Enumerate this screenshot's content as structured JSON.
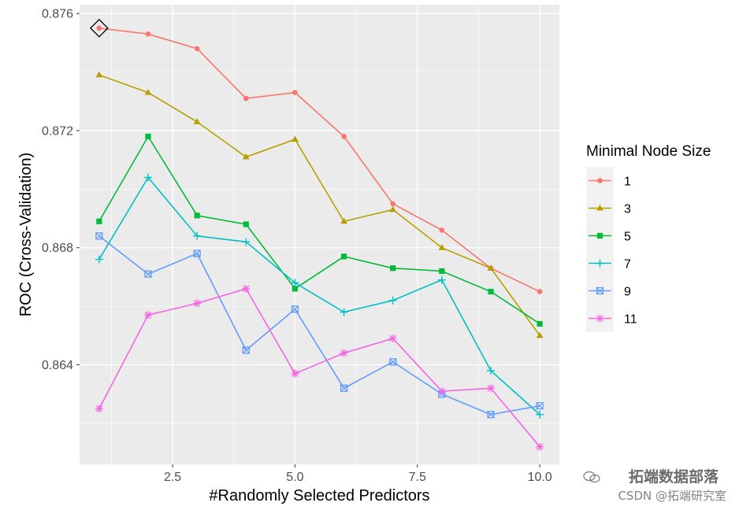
{
  "chart_data": {
    "type": "line",
    "xlabel": "#Randomly Selected Predictors",
    "ylabel": "ROC (Cross-Validation)",
    "xlim": [
      0.6,
      10.4
    ],
    "ylim": [
      0.8606,
      0.8763
    ],
    "x_ticks": [
      2.5,
      5.0,
      7.5,
      10.0
    ],
    "x_tick_labels": [
      "2.5",
      "5.0",
      "7.5",
      "10.0"
    ],
    "y_ticks": [
      0.864,
      0.868,
      0.872,
      0.876
    ],
    "y_tick_labels": [
      "0.864",
      "0.868",
      "0.872",
      "0.876"
    ],
    "grid": true,
    "legend_title": "Minimal Node Size",
    "legend_position": "right",
    "x": [
      1,
      2,
      3,
      4,
      5,
      6,
      7,
      8,
      9,
      10
    ],
    "series": [
      {
        "name": "1",
        "color": "#F8766D",
        "marker": "circle",
        "values": [
          0.8755,
          0.8753,
          0.8748,
          0.8731,
          0.8733,
          0.8718,
          0.8695,
          0.8686,
          0.8673,
          0.8665
        ]
      },
      {
        "name": "3",
        "color": "#B79F00",
        "marker": "triangle",
        "values": [
          0.8739,
          0.8733,
          0.8723,
          0.8711,
          0.8717,
          0.8689,
          0.8693,
          0.868,
          0.8673,
          0.865
        ]
      },
      {
        "name": "5",
        "color": "#00BA38",
        "marker": "square",
        "values": [
          0.8689,
          0.8718,
          0.8691,
          0.8688,
          0.8666,
          0.8677,
          0.8673,
          0.8672,
          0.8665,
          0.8654
        ]
      },
      {
        "name": "7",
        "color": "#00BFC4",
        "marker": "plus",
        "values": [
          0.8676,
          0.8704,
          0.8684,
          0.8682,
          0.8668,
          0.8658,
          0.8662,
          0.8669,
          0.8638,
          0.8623
        ]
      },
      {
        "name": "9",
        "color": "#619CFF",
        "marker": "boxcross",
        "values": [
          0.8684,
          0.8671,
          0.8678,
          0.8645,
          0.8659,
          0.8632,
          0.8641,
          0.863,
          0.8623,
          0.8626
        ]
      },
      {
        "name": "11",
        "color": "#F564E3",
        "marker": "asterisk",
        "values": [
          0.8625,
          0.8657,
          0.8661,
          0.8666,
          0.8637,
          0.8644,
          0.8649,
          0.8631,
          0.8632,
          0.8612
        ]
      }
    ],
    "highlight": {
      "x": 1,
      "y": 0.8755,
      "marker": "diamond"
    }
  },
  "watermark": {
    "line1": "拓端数据部落",
    "line2": "CSDN @拓端研究室"
  }
}
